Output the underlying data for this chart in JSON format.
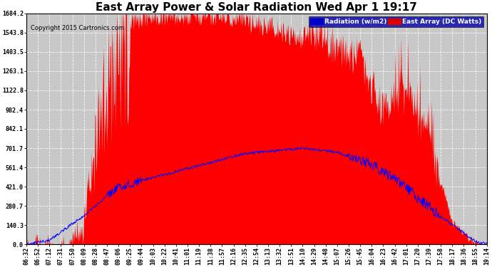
{
  "title": "East Array Power & Solar Radiation Wed Apr 1 19:17",
  "copyright": "Copyright 2015 Cartronics.com",
  "legend_radiation": "Radiation (w/m2)",
  "legend_east_array": "East Array (DC Watts)",
  "y_ticks": [
    0.0,
    140.3,
    280.7,
    421.0,
    561.4,
    701.7,
    842.1,
    982.4,
    1122.8,
    1263.1,
    1403.5,
    1543.8,
    1684.2
  ],
  "ylim": [
    0,
    1684.2
  ],
  "background_color": "#ffffff",
  "plot_bg_color": "#c8c8c8",
  "grid_color": "#ffffff",
  "fill_color": "#ff0000",
  "line_color_radiation": "#0000ff",
  "title_fontsize": 11,
  "tick_label_fontsize": 6,
  "copyright_fontsize": 6,
  "x_labels": [
    "06:32",
    "06:52",
    "07:12",
    "07:31",
    "07:50",
    "08:09",
    "08:28",
    "08:47",
    "09:06",
    "09:25",
    "09:44",
    "10:03",
    "10:22",
    "10:41",
    "11:01",
    "11:19",
    "11:38",
    "11:57",
    "12:16",
    "12:35",
    "12:54",
    "13:13",
    "13:32",
    "13:51",
    "14:10",
    "14:29",
    "14:48",
    "15:07",
    "15:26",
    "15:45",
    "16:04",
    "16:23",
    "16:42",
    "17:01",
    "17:20",
    "17:39",
    "17:58",
    "18:17",
    "18:36",
    "18:55",
    "19:14"
  ]
}
